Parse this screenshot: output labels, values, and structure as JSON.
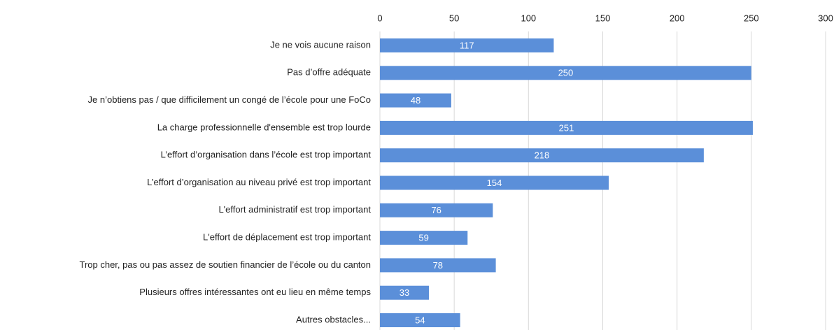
{
  "chart_data": {
    "type": "bar",
    "orientation": "horizontal",
    "categories": [
      "Je ne vois aucune raison",
      "Pas d’offre adéquate",
      "Je n’obtiens pas / que difficilement un congé de l’école pour une FoCo",
      "La charge professionnelle d'ensemble est trop lourde",
      "L’effort d’organisation dans l’école est trop important",
      "L’effort d’organisation au niveau privé est trop important",
      "L'effort administratif est trop important",
      "L'effort de déplacement est trop important",
      "Trop cher, pas ou pas assez de soutien financier de l’école ou du canton",
      "Plusieurs offres intéressantes ont eu lieu en même temps",
      "Autres obstacles..."
    ],
    "values": [
      117,
      250,
      48,
      251,
      218,
      154,
      76,
      59,
      78,
      33,
      54
    ],
    "color": "#5b8fd9",
    "xlim": [
      0,
      300
    ],
    "xticks": [
      0,
      50,
      100,
      150,
      200,
      250,
      300
    ],
    "grid": true
  }
}
